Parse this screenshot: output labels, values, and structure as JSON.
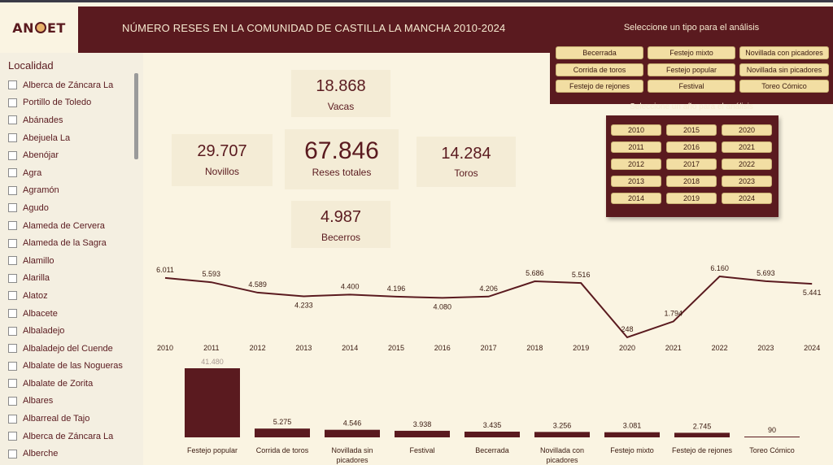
{
  "header": {
    "logo_left": "AN",
    "logo_right": "ET",
    "title": "NÚMERO RESES EN LA COMUNIDAD DE CASTILLA LA MANCHA 2010-2024"
  },
  "type_filter": {
    "title": "Seleccione un tipo para el análisis",
    "options": [
      "Becerrada",
      "Festejo mixto",
      "Novillada con picadores",
      "Corrida de toros",
      "Festejo popular",
      "Novillada sin picadores",
      "Festejo de rejones",
      "Festival",
      "Toreo Cómico"
    ]
  },
  "year_filter": {
    "title": "Seleccione un año para el análisis",
    "options": [
      "2010",
      "2015",
      "2020",
      "2011",
      "2016",
      "2021",
      "2012",
      "2017",
      "2022",
      "2013",
      "2018",
      "2023",
      "2014",
      "2019",
      "2024"
    ]
  },
  "sidebar": {
    "title": "Localidad",
    "items": [
      "Alberca de Záncara La",
      "Portillo de Toledo",
      "Abánades",
      "Abejuela La",
      "Abenójar",
      "Agra",
      "Agramón",
      "Agudo",
      "Alameda de Cervera",
      "Alameda de la Sagra",
      "Alamillo",
      "Alarilla",
      "Alatoz",
      "Albacete",
      "Albaladejo",
      "Albaladejo del Cuende",
      "Albalate de las Nogueras",
      "Albalate de Zorita",
      "Albares",
      "Albarreal de Tajo",
      "Alberca de Záncara La",
      "Alberche"
    ]
  },
  "kpis": {
    "vacas": {
      "value": "18.868",
      "label": "Vacas"
    },
    "novillos": {
      "value": "29.707",
      "label": "Novillos"
    },
    "total": {
      "value": "67.846",
      "label": "Reses totales"
    },
    "toros": {
      "value": "14.284",
      "label": "Toros"
    },
    "becerros": {
      "value": "4.987",
      "label": "Becerros"
    }
  },
  "colors": {
    "accent": "#5a1a1f",
    "button": "#f2dea3",
    "background": "#faf4e2"
  },
  "chart_data": [
    {
      "type": "line",
      "x": [
        "2010",
        "2011",
        "2012",
        "2013",
        "2014",
        "2015",
        "2016",
        "2017",
        "2018",
        "2019",
        "2020",
        "2021",
        "2022",
        "2023",
        "2024"
      ],
      "values": [
        6011,
        5593,
        4589,
        4233,
        4400,
        4196,
        4080,
        4206,
        5686,
        5516,
        248,
        1794,
        6160,
        5693,
        5441
      ],
      "labels": [
        "6.011",
        "5.593",
        "4.589",
        "4.233",
        "4.400",
        "4.196",
        "4.080",
        "4.206",
        "5.686",
        "5.516",
        "248",
        "1.794",
        "6.160",
        "5.693",
        "5.441"
      ],
      "grid": false
    },
    {
      "type": "bar",
      "categories": [
        "Festejo popular",
        "Corrida de toros",
        "Novillada sin picadores",
        "Festival",
        "Becerrada",
        "Novillada con picadores",
        "Festejo mixto",
        "Festejo de rejones",
        "Toreo Cómico"
      ],
      "values": [
        41480,
        5275,
        4546,
        3938,
        3435,
        3256,
        3081,
        2745,
        90
      ],
      "labels": [
        "41.480",
        "5.275",
        "4.546",
        "3.938",
        "3.435",
        "3.256",
        "3.081",
        "2.745",
        "90"
      ],
      "grid": false
    }
  ]
}
